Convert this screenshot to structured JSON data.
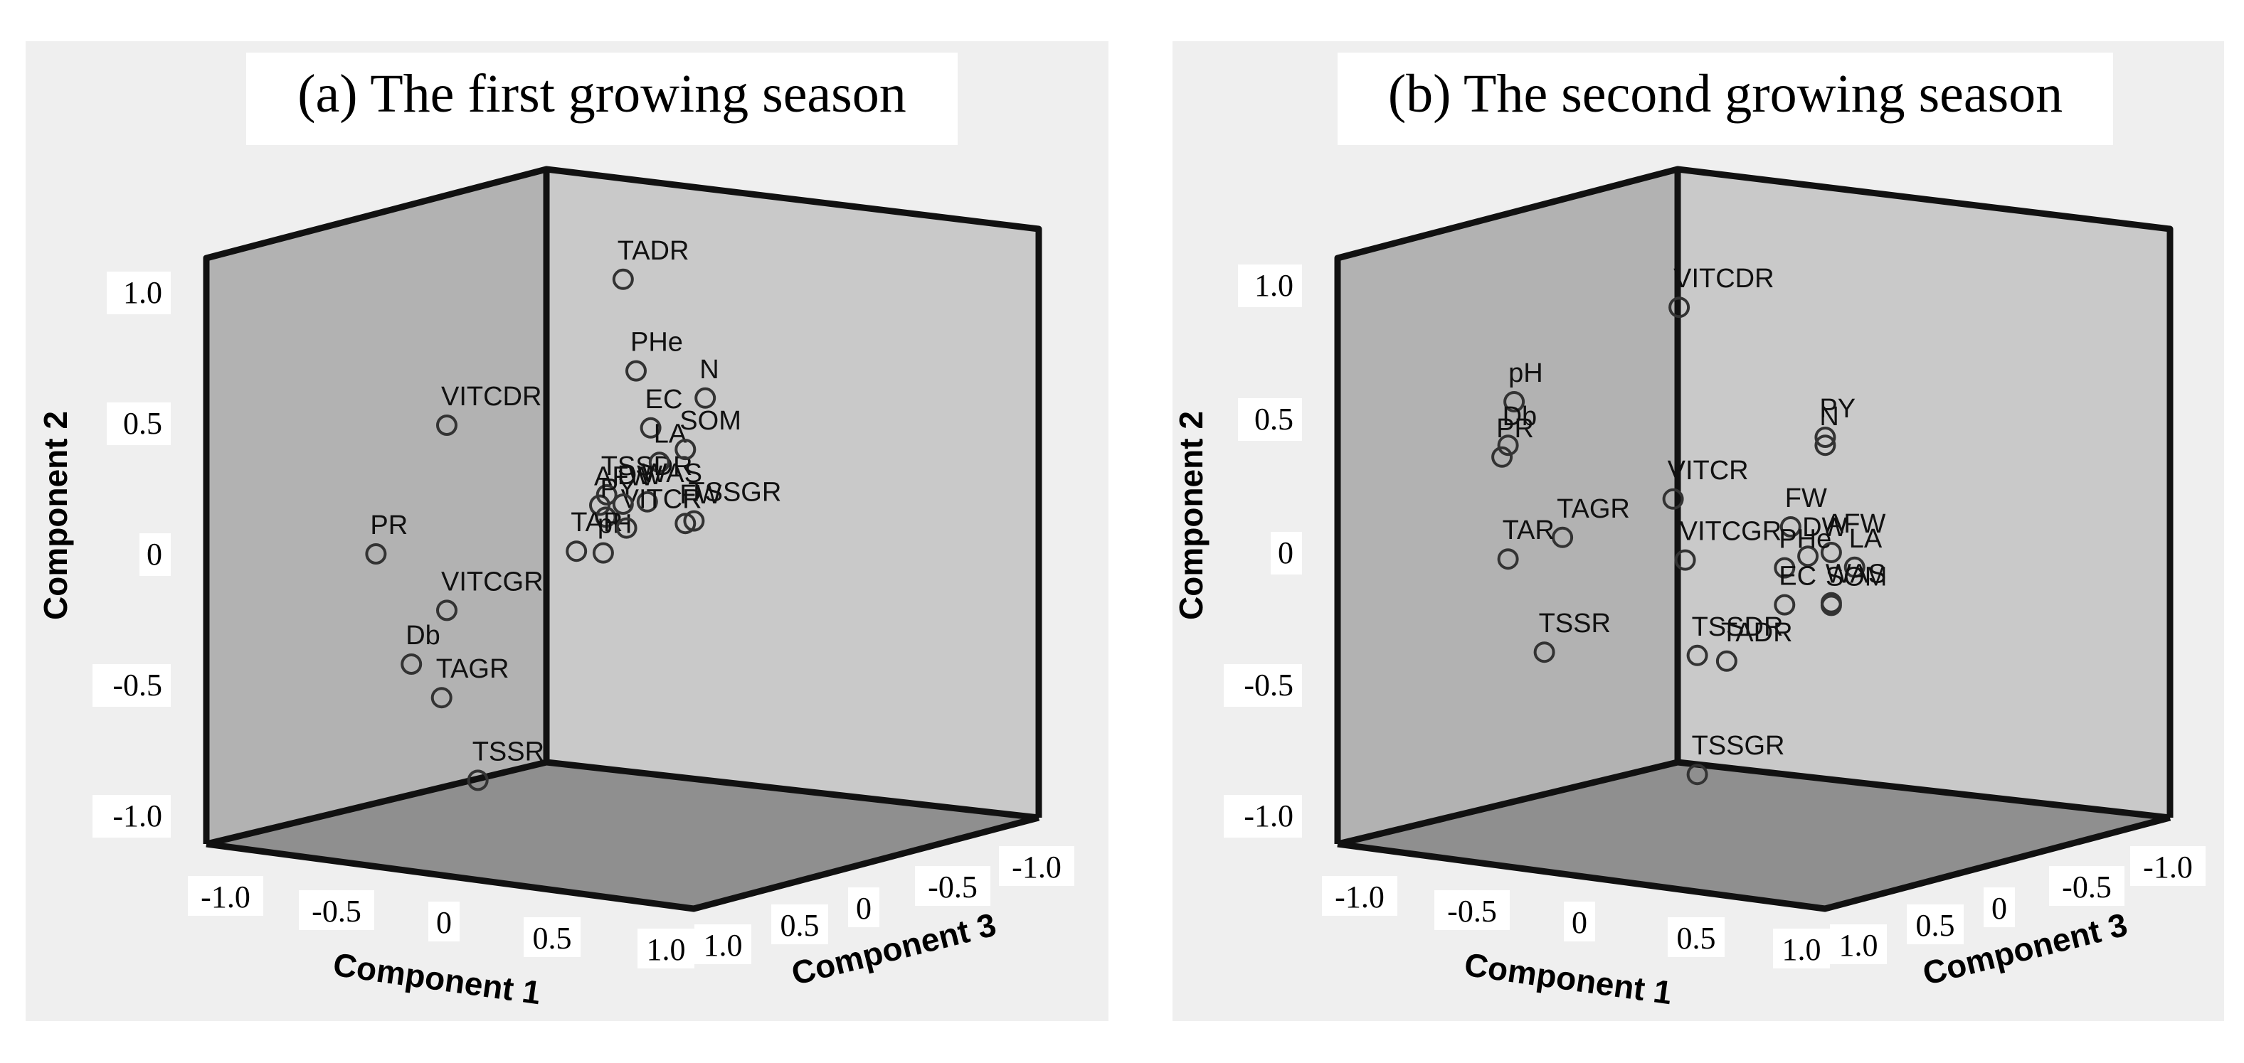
{
  "colors": {
    "panel_bg": "#efefef",
    "back_wall": "#c9c9c9",
    "left_wall": "#b2b2b2",
    "floor": "#8f8f8f",
    "frame": "#111111",
    "marker": "#333333",
    "text": "#111111",
    "title_box": "#ffffff"
  },
  "chart_data": [
    {
      "type": "scatter3d",
      "title": "(a) The first growing season",
      "xlabel": "Component 1",
      "ylabel": "Component 2",
      "zlabel": "Component 3",
      "xlim": [
        -1.0,
        1.0
      ],
      "ylim": [
        -1.0,
        1.0
      ],
      "zlim": [
        -1.0,
        1.0
      ],
      "y_ticks": [
        "1.0",
        "0.5",
        "0",
        "-0.5",
        "-1.0"
      ],
      "x_ticks": [
        "-1.0",
        "-0.5",
        "0",
        "0.5",
        "1.0"
      ],
      "z_ticks": [
        "1.0",
        "0.5",
        "0",
        "-0.5",
        "-1.0"
      ],
      "points": [
        {
          "label": "TADR",
          "x": 0.6,
          "y": 1.0,
          "z": -0.6
        },
        {
          "label": "PHe",
          "x": 0.85,
          "y": 0.7,
          "z": -0.5
        },
        {
          "label": "EC",
          "x": 0.9,
          "y": 0.48,
          "z": -0.55
        },
        {
          "label": "N",
          "x": 0.85,
          "y": 0.52,
          "z": -0.9
        },
        {
          "label": "TSSDR",
          "x": 0.75,
          "y": 0.24,
          "z": -0.4
        },
        {
          "label": "LA",
          "x": 0.9,
          "y": 0.34,
          "z": -0.6
        },
        {
          "label": "SOM",
          "x": 0.9,
          "y": 0.36,
          "z": -0.75
        },
        {
          "label": "AFW",
          "x": 0.55,
          "y": 0.16,
          "z": -0.5
        },
        {
          "label": "PY",
          "x": 0.6,
          "y": 0.12,
          "z": -0.5
        },
        {
          "label": "WAS",
          "x": 0.8,
          "y": 0.18,
          "z": -0.6
        },
        {
          "label": "FW",
          "x": 0.9,
          "y": 0.08,
          "z": -0.75
        },
        {
          "label": "TAR",
          "x": 0.5,
          "y": 0.0,
          "z": -0.4
        },
        {
          "label": "pH",
          "x": 0.65,
          "y": 0.0,
          "z": -0.45
        },
        {
          "label": "VITCR",
          "x": 0.7,
          "y": 0.08,
          "z": -0.55
        },
        {
          "label": "TSSGR",
          "x": 0.9,
          "y": 0.08,
          "z": -0.8
        },
        {
          "label": "DW",
          "x": 0.6,
          "y": 0.15,
          "z": -0.6
        },
        {
          "label": "VITCDR",
          "x": 0.0,
          "y": 0.5,
          "z": 0.0
        },
        {
          "label": "PR",
          "x": -0.3,
          "y": 0.02,
          "z": 0.2
        },
        {
          "label": "VITCGR",
          "x": 0.0,
          "y": -0.2,
          "z": 0.0
        },
        {
          "label": "Db",
          "x": -0.15,
          "y": -0.4,
          "z": 0.1
        },
        {
          "label": "TAGR",
          "x": 0.1,
          "y": -0.5,
          "z": 0.1
        },
        {
          "label": "TSSR",
          "x": 0.4,
          "y": -0.78,
          "z": 0.1
        }
      ]
    },
    {
      "type": "scatter3d",
      "title": "(b) The second growing season",
      "xlabel": "Component 1",
      "ylabel": "Component 2",
      "zlabel": "Component 3",
      "xlim": [
        -1.0,
        1.0
      ],
      "ylim": [
        -1.0,
        1.0
      ],
      "zlim": [
        -1.0,
        1.0
      ],
      "y_ticks": [
        "1.0",
        "0.5",
        "0",
        "-0.5",
        "-1.0"
      ],
      "x_ticks": [
        "-1.0",
        "-0.5",
        "0",
        "0.5",
        "1.0"
      ],
      "z_ticks": [
        "1.0",
        "0.5",
        "0",
        "-0.5",
        "-1.0"
      ],
      "points": [
        {
          "label": "VITCDR",
          "x": 0.55,
          "y": 0.95,
          "z": -0.2
        },
        {
          "label": "pH",
          "x": -0.1,
          "y": 0.62,
          "z": 0.3
        },
        {
          "label": "Db",
          "x": -0.15,
          "y": 0.45,
          "z": 0.3
        },
        {
          "label": "PR",
          "x": -0.2,
          "y": 0.4,
          "z": 0.3
        },
        {
          "label": "TAGR",
          "x": 0.3,
          "y": 0.15,
          "z": 0.3
        },
        {
          "label": "VITCR",
          "x": 0.5,
          "y": 0.22,
          "z": -0.2
        },
        {
          "label": "TAR",
          "x": -0.15,
          "y": 0.02,
          "z": 0.3
        },
        {
          "label": "TSSR",
          "x": 0.15,
          "y": -0.3,
          "z": 0.3
        },
        {
          "label": "VITCGR",
          "x": 0.6,
          "y": 0.0,
          "z": -0.2
        },
        {
          "label": "TSSDR",
          "x": 0.7,
          "y": -0.35,
          "z": -0.2
        },
        {
          "label": "TADR",
          "x": 0.8,
          "y": -0.38,
          "z": -0.3
        },
        {
          "label": "TSSGR",
          "x": 0.7,
          "y": -0.8,
          "z": -0.2
        },
        {
          "label": "PY",
          "x": 0.9,
          "y": 0.38,
          "z": -0.8
        },
        {
          "label": "N",
          "x": 0.9,
          "y": 0.35,
          "z": -0.8
        },
        {
          "label": "FW",
          "x": 0.9,
          "y": 0.08,
          "z": -0.6
        },
        {
          "label": "DW",
          "x": 0.9,
          "y": -0.05,
          "z": -0.7
        },
        {
          "label": "AFW",
          "x": 0.95,
          "y": -0.05,
          "z": -0.8
        },
        {
          "label": "PHe",
          "x": 0.85,
          "y": -0.08,
          "z": -0.6
        },
        {
          "label": "LA",
          "x": 1.0,
          "y": -0.12,
          "z": -0.9
        },
        {
          "label": "EC",
          "x": 0.85,
          "y": -0.22,
          "z": -0.6
        },
        {
          "label": "WAS",
          "x": 0.95,
          "y": -0.24,
          "z": -0.8
        },
        {
          "label": "SOM",
          "x": 0.95,
          "y": -0.25,
          "z": -0.8
        }
      ]
    }
  ]
}
